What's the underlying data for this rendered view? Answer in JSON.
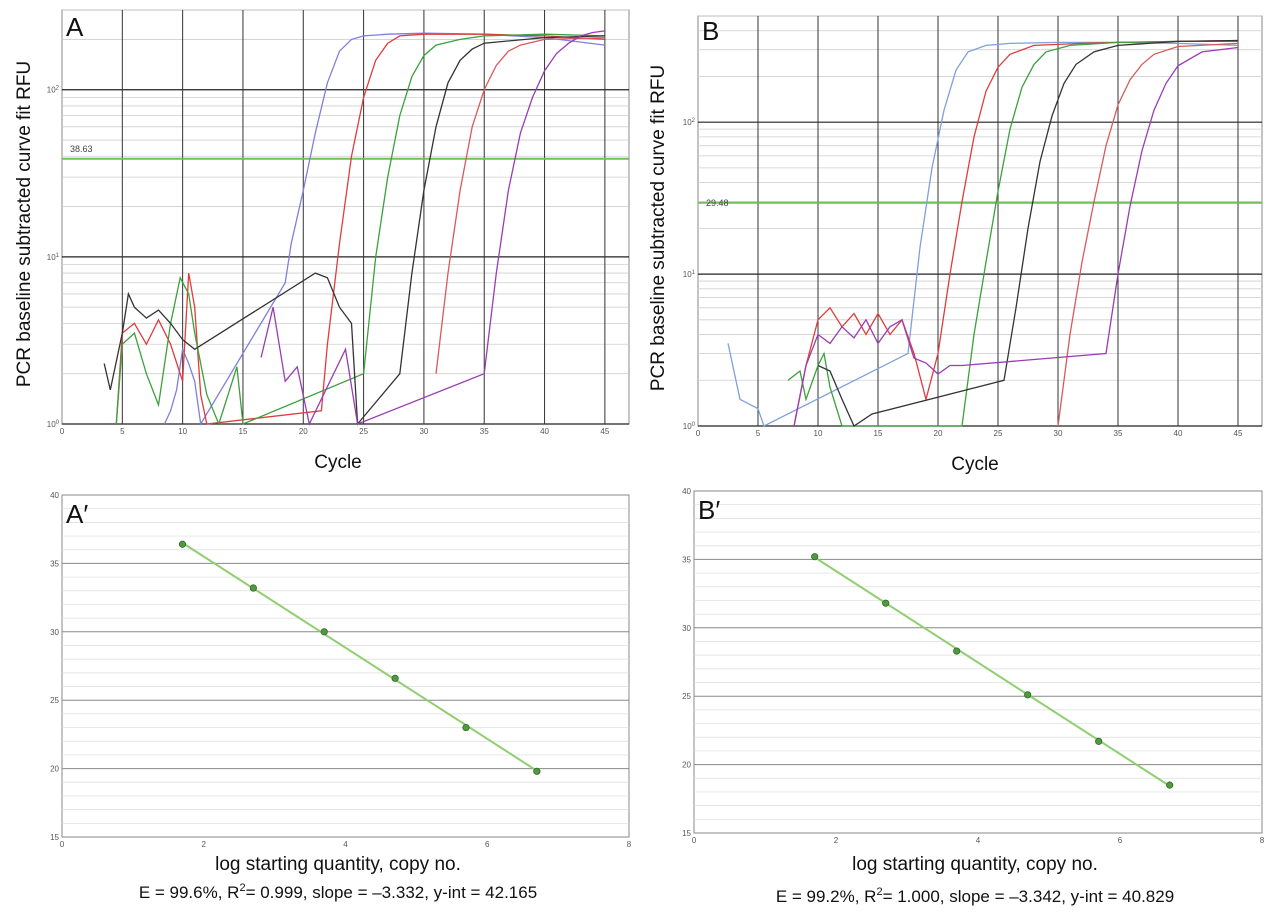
{
  "figure": {
    "panels": {
      "A": {
        "letter": "A",
        "ylabel": "PCR baseline subtracted curve fit RFU",
        "xlabel": "Cycle",
        "threshold_label": "38.63"
      },
      "B": {
        "letter": "B",
        "ylabel": "PCR baseline subtracted curve fit RFU",
        "xlabel": "Cycle",
        "threshold_label": "29.48"
      },
      "Ap": {
        "letter": "A′",
        "xlabel": "log starting quantity, copy no.",
        "stats_prefix": "E = 99.6%, R",
        "stats_sup": "2",
        "stats_suffix": "= 0.999, slope = –3.332, y-int = 42.165"
      },
      "Bp": {
        "letter": "B′",
        "xlabel": "log starting quantity, copy no.",
        "stats_prefix": "E = 99.2%, R",
        "stats_sup": "2",
        "stats_suffix": "= 1.000, slope = –3.342, y-int = 40.829"
      }
    }
  },
  "chart_data": [
    {
      "panel": "A",
      "type": "line",
      "y_scale": "log",
      "xlim": [
        0,
        47
      ],
      "ylim": [
        1,
        300
      ],
      "x_ticks": [
        "0",
        "5",
        "10",
        "15",
        "20",
        "25",
        "30",
        "35",
        "40",
        "45"
      ],
      "y_ticks": [
        "10^0",
        "10^1",
        "10^2"
      ],
      "threshold": 38.63,
      "grid": true,
      "series": [
        {
          "color": "#7f7fdc",
          "points": [
            [
              8.5,
              1
            ],
            [
              9,
              1.2
            ],
            [
              9.5,
              1.6
            ],
            [
              10,
              2.8
            ],
            [
              10.5,
              2.3
            ],
            [
              11,
              1.8
            ],
            [
              11.5,
              1
            ],
            [
              18.5,
              7
            ],
            [
              19,
              12
            ],
            [
              20,
              25
            ],
            [
              21,
              55
            ],
            [
              22,
              110
            ],
            [
              23,
              170
            ],
            [
              24,
              200
            ],
            [
              25,
              210
            ],
            [
              27,
              215
            ],
            [
              30,
              218
            ],
            [
              35,
              215
            ],
            [
              40,
              205
            ],
            [
              45,
              185
            ]
          ]
        },
        {
          "color": "#e03c3c",
          "points": [
            [
              4.5,
              1
            ],
            [
              5,
              3.5
            ],
            [
              6,
              4
            ],
            [
              7,
              3
            ],
            [
              8,
              4.2
            ],
            [
              9,
              3
            ],
            [
              10,
              1.8
            ],
            [
              10.5,
              8
            ],
            [
              11,
              5
            ],
            [
              11.5,
              1.5
            ],
            [
              12,
              1
            ],
            [
              21.5,
              1.2
            ],
            [
              22,
              3
            ],
            [
              23,
              12
            ],
            [
              24,
              40
            ],
            [
              25,
              90
            ],
            [
              26,
              150
            ],
            [
              27,
              190
            ],
            [
              28,
              210
            ],
            [
              30,
              215
            ],
            [
              35,
              215
            ],
            [
              40,
              210
            ],
            [
              45,
              200
            ]
          ]
        },
        {
          "color": "#3ca03c",
          "points": [
            [
              4.5,
              1
            ],
            [
              5,
              3
            ],
            [
              6,
              3.5
            ],
            [
              7,
              2
            ],
            [
              8,
              1.3
            ],
            [
              9,
              4
            ],
            [
              9.8,
              7.5
            ],
            [
              10.5,
              6
            ],
            [
              11,
              3.5
            ],
            [
              12,
              1.5
            ],
            [
              13,
              1
            ],
            [
              14.5,
              2.2
            ],
            [
              15,
              1
            ],
            [
              25,
              2
            ],
            [
              26,
              10
            ],
            [
              27,
              30
            ],
            [
              28,
              70
            ],
            [
              29,
              120
            ],
            [
              30,
              160
            ],
            [
              31,
              185
            ],
            [
              33,
              200
            ],
            [
              35,
              210
            ],
            [
              40,
              215
            ],
            [
              45,
              210
            ]
          ]
        },
        {
          "color": "#333333",
          "points": [
            [
              3.5,
              2.3
            ],
            [
              4,
              1.6
            ],
            [
              5,
              3.5
            ],
            [
              5.5,
              6
            ],
            [
              6,
              5
            ],
            [
              7,
              4.3
            ],
            [
              8,
              4.8
            ],
            [
              9,
              4
            ],
            [
              10,
              3.2
            ],
            [
              11,
              2.8
            ],
            [
              21,
              8
            ],
            [
              22,
              7.5
            ],
            [
              23,
              5
            ],
            [
              24,
              4
            ],
            [
              24.5,
              1
            ],
            [
              28,
              2
            ],
            [
              29,
              8
            ],
            [
              30,
              25
            ],
            [
              31,
              60
            ],
            [
              32,
              110
            ],
            [
              33,
              150
            ],
            [
              34,
              175
            ],
            [
              35,
              190
            ],
            [
              40,
              205
            ],
            [
              45,
              210
            ]
          ]
        },
        {
          "color": "#d95a5a",
          "points": [
            [
              31,
              2
            ],
            [
              32,
              8
            ],
            [
              33,
              25
            ],
            [
              34,
              60
            ],
            [
              35,
              100
            ],
            [
              36,
              140
            ],
            [
              37,
              170
            ],
            [
              38,
              185
            ],
            [
              40,
              200
            ],
            [
              45,
              205
            ]
          ]
        },
        {
          "color": "#9a3cb4",
          "points": [
            [
              16.5,
              2.5
            ],
            [
              17.5,
              5
            ],
            [
              18.5,
              1.8
            ],
            [
              19.5,
              2.2
            ],
            [
              20.5,
              1
            ],
            [
              23.5,
              2.8
            ],
            [
              24.5,
              1
            ],
            [
              35,
              2
            ],
            [
              36,
              8
            ],
            [
              37,
              25
            ],
            [
              38,
              55
            ],
            [
              39,
              90
            ],
            [
              40,
              130
            ],
            [
              41,
              165
            ],
            [
              42,
              190
            ],
            [
              43,
              210
            ],
            [
              44,
              220
            ],
            [
              45,
              225
            ]
          ]
        }
      ]
    },
    {
      "panel": "B",
      "type": "line",
      "y_scale": "log",
      "xlim": [
        0,
        47
      ],
      "ylim": [
        1,
        500
      ],
      "x_ticks": [
        "0",
        "5",
        "10",
        "15",
        "20",
        "25",
        "30",
        "35",
        "40",
        "45"
      ],
      "y_ticks": [
        "10^0",
        "10^1",
        "10^2"
      ],
      "threshold": 29.48,
      "grid": true,
      "series": [
        {
          "color": "#7fa0dc",
          "points": [
            [
              2.5,
              3.5
            ],
            [
              3.5,
              1.5
            ],
            [
              5,
              1.3
            ],
            [
              5.5,
              1
            ],
            [
              17.5,
              3
            ],
            [
              18.5,
              15
            ],
            [
              19.5,
              50
            ],
            [
              20.5,
              120
            ],
            [
              21.5,
              220
            ],
            [
              22.5,
              290
            ],
            [
              24,
              320
            ],
            [
              26,
              330
            ],
            [
              30,
              335
            ],
            [
              35,
              335
            ],
            [
              40,
              330
            ],
            [
              45,
              320
            ]
          ]
        },
        {
          "color": "#e03c3c",
          "points": [
            [
              8,
              1
            ],
            [
              9,
              2.5
            ],
            [
              10,
              5
            ],
            [
              11,
              6
            ],
            [
              12,
              4.5
            ],
            [
              13,
              5.5
            ],
            [
              14,
              4
            ],
            [
              15,
              5.5
            ],
            [
              16,
              4
            ],
            [
              17,
              5
            ],
            [
              18,
              3
            ],
            [
              19,
              1.5
            ],
            [
              20,
              3
            ],
            [
              21,
              10
            ],
            [
              22,
              30
            ],
            [
              23,
              80
            ],
            [
              24,
              160
            ],
            [
              25,
              230
            ],
            [
              26,
              280
            ],
            [
              28,
              320
            ],
            [
              32,
              330
            ],
            [
              35,
              335
            ],
            [
              40,
              340
            ],
            [
              45,
              345
            ]
          ]
        },
        {
          "color": "#3ca03c",
          "points": [
            [
              7.5,
              2
            ],
            [
              8.5,
              2.3
            ],
            [
              9,
              1.5
            ],
            [
              10,
              2.5
            ],
            [
              10.5,
              3
            ],
            [
              11,
              1.8
            ],
            [
              12,
              1
            ],
            [
              22,
              1
            ],
            [
              23,
              4
            ],
            [
              24,
              12
            ],
            [
              25,
              35
            ],
            [
              26,
              90
            ],
            [
              27,
              170
            ],
            [
              28,
              240
            ],
            [
              29,
              290
            ],
            [
              31,
              320
            ],
            [
              35,
              335
            ],
            [
              40,
              340
            ],
            [
              45,
              340
            ]
          ]
        },
        {
          "color": "#333333",
          "points": [
            [
              10,
              2.5
            ],
            [
              11,
              2.3
            ],
            [
              12,
              1.5
            ],
            [
              13,
              1
            ],
            [
              14.5,
              1.2
            ],
            [
              25.5,
              2
            ],
            [
              26.5,
              6
            ],
            [
              27.5,
              20
            ],
            [
              28.5,
              55
            ],
            [
              29.5,
              110
            ],
            [
              30.5,
              180
            ],
            [
              31.5,
              240
            ],
            [
              33,
              290
            ],
            [
              35,
              320
            ],
            [
              40,
              340
            ],
            [
              45,
              345
            ]
          ]
        },
        {
          "color": "#d95a5a",
          "points": [
            [
              30,
              1
            ],
            [
              31,
              4
            ],
            [
              32,
              12
            ],
            [
              33,
              30
            ],
            [
              34,
              70
            ],
            [
              35,
              130
            ],
            [
              36,
              190
            ],
            [
              37,
              240
            ],
            [
              38,
              280
            ],
            [
              40,
              315
            ],
            [
              45,
              330
            ]
          ]
        },
        {
          "color": "#9a3cb4",
          "points": [
            [
              8,
              1
            ],
            [
              9,
              2.5
            ],
            [
              10,
              4
            ],
            [
              11,
              3.5
            ],
            [
              12,
              4.5
            ],
            [
              13,
              3.8
            ],
            [
              14,
              5
            ],
            [
              15,
              3.5
            ],
            [
              16,
              4.5
            ],
            [
              17,
              5
            ],
            [
              18,
              2.8
            ],
            [
              19,
              2.6
            ],
            [
              20,
              2.2
            ],
            [
              21,
              2.5
            ],
            [
              22,
              2.5
            ],
            [
              34,
              3
            ],
            [
              35,
              10
            ],
            [
              36,
              28
            ],
            [
              37,
              65
            ],
            [
              38,
              120
            ],
            [
              39,
              180
            ],
            [
              40,
              235
            ],
            [
              42,
              290
            ],
            [
              45,
              310
            ]
          ]
        }
      ]
    },
    {
      "panel": "A′",
      "type": "scatter",
      "xlim": [
        0,
        8
      ],
      "ylim": [
        15,
        40
      ],
      "x_ticks": [
        "0",
        "2",
        "4",
        "6",
        "8"
      ],
      "y_ticks": [
        "15",
        "20",
        "25",
        "30",
        "35",
        "40"
      ],
      "grid": true,
      "points": [
        [
          1.7,
          36.4
        ],
        [
          2.7,
          33.2
        ],
        [
          3.7,
          30.0
        ],
        [
          4.7,
          26.6
        ],
        [
          5.7,
          23.0
        ],
        [
          6.7,
          19.8
        ]
      ],
      "fit": {
        "slope": -3.332,
        "intercept": 42.165
      },
      "color": "#3c9a3c"
    },
    {
      "panel": "B′",
      "type": "scatter",
      "xlim": [
        0,
        8
      ],
      "ylim": [
        15,
        40
      ],
      "x_ticks": [
        "0",
        "2",
        "4",
        "6",
        "8"
      ],
      "y_ticks": [
        "15",
        "20",
        "25",
        "30",
        "35",
        "40"
      ],
      "grid": true,
      "points": [
        [
          1.7,
          35.2
        ],
        [
          2.7,
          31.8
        ],
        [
          3.7,
          28.3
        ],
        [
          4.7,
          25.1
        ],
        [
          5.7,
          21.7
        ],
        [
          6.7,
          18.5
        ]
      ],
      "fit": {
        "slope": -3.342,
        "intercept": 40.829
      },
      "color": "#3c9a3c"
    }
  ]
}
